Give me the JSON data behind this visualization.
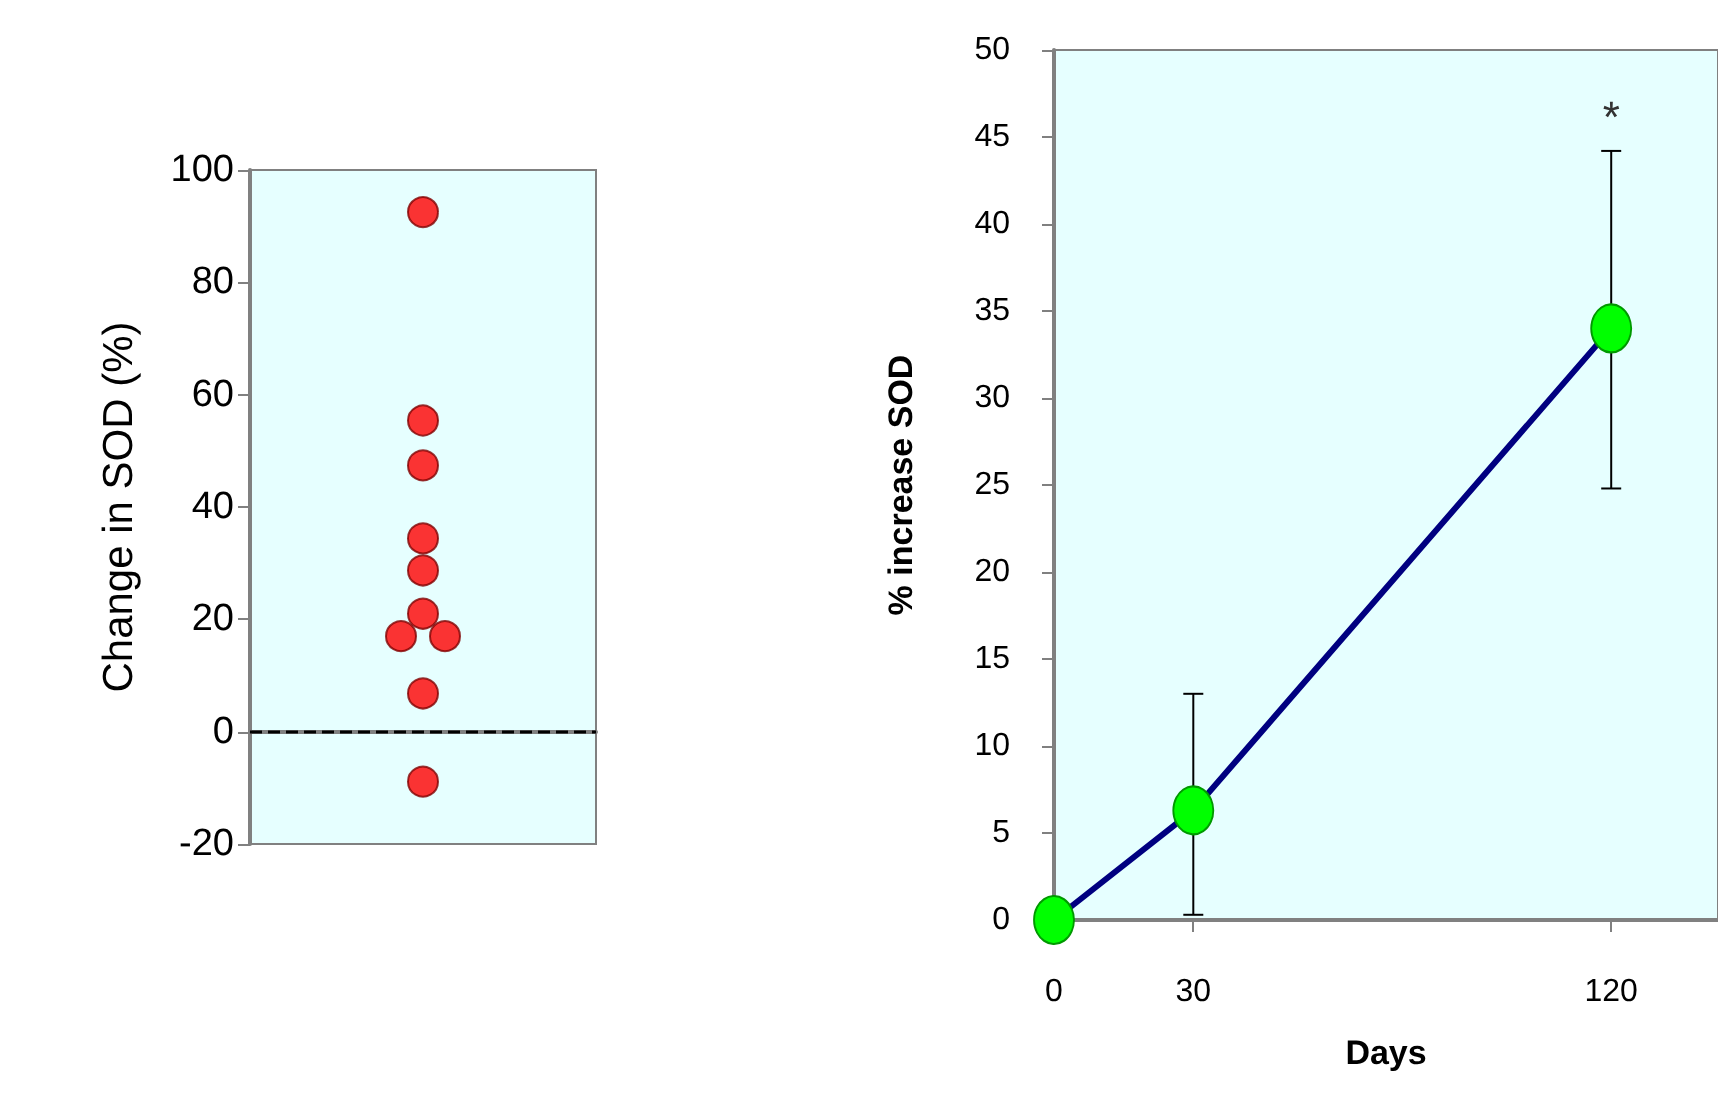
{
  "chart_data": [
    {
      "type": "scatter",
      "ylabel": "Change in SOD (%)",
      "categories": [
        null
      ],
      "series": [
        {
          "color": "#ff0000",
          "x": [
            null,
            null,
            null,
            null,
            null,
            null,
            null,
            null,
            null,
            null
          ],
          "values": [
            92.5,
            55.4,
            47.4,
            34.4,
            28.7,
            21,
            17,
            17,
            6.8,
            -8.9
          ]
        }
      ],
      "ylim": [
        -20,
        100
      ],
      "yticks": [
        -20,
        0,
        20,
        40,
        60,
        80,
        100
      ],
      "marker": "circle",
      "ref_lines": [
        {
          "axis": "y",
          "value": 0,
          "color": "#000000",
          "line_style": "dashed"
        }
      ]
    },
    {
      "type": "line",
      "xlabel": "Days",
      "ylabel": "% increase SOD",
      "x": [
        0,
        30,
        120
      ],
      "series": [
        {
          "color": "#000080",
          "values": [
            0,
            6.3,
            34
          ],
          "errors": [
            null,
            [
              0.3,
              13
            ],
            [
              24.8,
              44.2
            ]
          ]
        }
      ],
      "xlim": [
        0,
        143
      ],
      "xticks": [
        0,
        30,
        120
      ],
      "ylim": [
        0,
        50
      ],
      "yticks": [
        0,
        5,
        10,
        15,
        20,
        25,
        30,
        35,
        40,
        45,
        50
      ],
      "marker": "circle",
      "line_style": "solid",
      "annotations": [
        {
          "text": "*",
          "x": 120,
          "y": 44.2
        }
      ]
    }
  ]
}
